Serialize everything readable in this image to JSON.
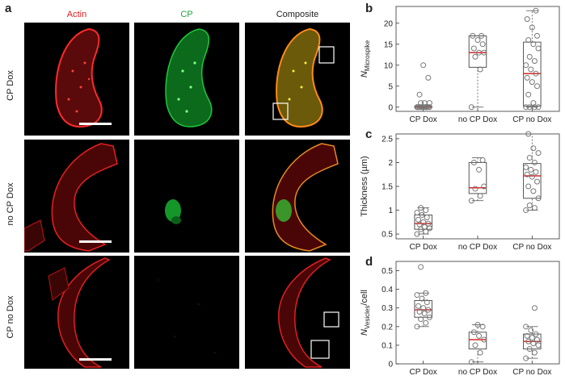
{
  "panel_a": {
    "label": "a",
    "columns": [
      "Actin",
      "CP",
      "Composite"
    ],
    "column_colors": [
      "#e01b1b",
      "#1fa53a",
      "#222222"
    ],
    "rows": [
      "CP Dox",
      "no CP Dox",
      "CP no Dox"
    ]
  },
  "chart_data": [
    {
      "panel": "b",
      "type": "box",
      "ylabel_main": "N",
      "ylabel_sub": "Microspike",
      "ylabel_suffix": "",
      "ylim": [
        -1,
        24
      ],
      "yticks": [
        0,
        5,
        10,
        15,
        20
      ],
      "categories": [
        "CP Dox",
        "no CP Dox",
        "CP no Dox"
      ],
      "boxes": [
        {
          "q1": 0,
          "median": 0,
          "q3": 0.2,
          "whisker_low": 0,
          "whisker_high": 0.5,
          "points": [
            0,
            0,
            0,
            0,
            0,
            0,
            0,
            0,
            0,
            0,
            0,
            0,
            0,
            1,
            1,
            1,
            3,
            7,
            10
          ]
        },
        {
          "q1": 9.5,
          "median": 13,
          "q3": 17,
          "whisker_low": 0,
          "whisker_high": 17,
          "points": [
            0,
            9,
            12,
            13,
            13,
            14,
            15,
            16,
            17,
            17
          ]
        },
        {
          "q1": 0.2,
          "median": 8,
          "q3": 15.5,
          "whisker_low": 0,
          "whisker_high": 23,
          "points": [
            0,
            0,
            0,
            0,
            1,
            3,
            5,
            6,
            7,
            8,
            9,
            10,
            11,
            12,
            14,
            15,
            16,
            17,
            19,
            21,
            23
          ]
        }
      ]
    },
    {
      "panel": "c",
      "type": "box",
      "ylabel_main": "Thickness (µm)",
      "ylabel_sub": "",
      "ylabel_suffix": "",
      "ylim": [
        0.4,
        2.6
      ],
      "yticks": [
        0.5,
        1,
        1.5,
        2,
        2.5
      ],
      "categories": [
        "CP Dox",
        "no CP Dox",
        "CP no Dox"
      ],
      "boxes": [
        {
          "q1": 0.6,
          "median": 0.72,
          "q3": 0.9,
          "whisker_low": 0.5,
          "whisker_high": 1.05,
          "points": [
            0.5,
            0.55,
            0.6,
            0.62,
            0.65,
            0.7,
            0.72,
            0.75,
            0.8,
            0.85,
            0.9,
            0.95,
            1.0,
            1.05
          ]
        },
        {
          "q1": 1.35,
          "median": 1.47,
          "q3": 2.0,
          "whisker_low": 1.2,
          "whisker_high": 2.1,
          "points": [
            1.2,
            1.3,
            1.45,
            1.5,
            1.85,
            2.0,
            2.05
          ]
        },
        {
          "q1": 1.25,
          "median": 1.72,
          "q3": 1.98,
          "whisker_low": 1.0,
          "whisker_high": 2.6,
          "points": [
            1.0,
            1.05,
            1.1,
            1.25,
            1.4,
            1.5,
            1.6,
            1.7,
            1.75,
            1.8,
            1.85,
            1.9,
            2.0,
            2.1,
            2.2,
            2.3,
            2.6
          ]
        }
      ]
    },
    {
      "panel": "d",
      "type": "box",
      "ylabel_main": "N",
      "ylabel_sub": "Vesicles",
      "ylabel_suffix": "/cell",
      "ylim": [
        0,
        0.55
      ],
      "yticks": [
        0,
        0.1,
        0.2,
        0.3,
        0.4,
        0.5
      ],
      "categories": [
        "CP Dox",
        "no CP Dox",
        "CP no Dox"
      ],
      "boxes": [
        {
          "q1": 0.25,
          "median": 0.29,
          "q3": 0.34,
          "whisker_low": 0.2,
          "whisker_high": 0.38,
          "points": [
            0.2,
            0.22,
            0.24,
            0.25,
            0.27,
            0.28,
            0.29,
            0.3,
            0.31,
            0.33,
            0.35,
            0.37,
            0.38,
            0.52
          ]
        },
        {
          "q1": 0.08,
          "median": 0.13,
          "q3": 0.17,
          "whisker_low": 0.01,
          "whisker_high": 0.21,
          "points": [
            0.01,
            0.06,
            0.1,
            0.13,
            0.15,
            0.17,
            0.2,
            0.21
          ]
        },
        {
          "q1": 0.08,
          "median": 0.12,
          "q3": 0.16,
          "whisker_low": 0.03,
          "whisker_high": 0.2,
          "points": [
            0.03,
            0.06,
            0.08,
            0.1,
            0.11,
            0.12,
            0.13,
            0.14,
            0.15,
            0.16,
            0.18,
            0.2,
            0.3
          ]
        }
      ]
    }
  ],
  "colors": {
    "median": "#d62828",
    "box": "#555555",
    "point": "#777777"
  }
}
